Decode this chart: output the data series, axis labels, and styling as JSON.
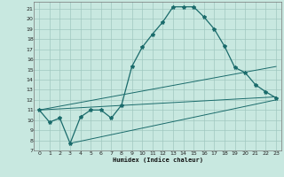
{
  "title": "",
  "xlabel": "Humidex (Indice chaleur)",
  "background_color": "#c8e8e0",
  "grid_color": "#a0c8c0",
  "line_color": "#1a6b6b",
  "xlim": [
    -0.5,
    23.5
  ],
  "ylim": [
    7,
    21.7
  ],
  "yticks": [
    7,
    8,
    9,
    10,
    11,
    12,
    13,
    14,
    15,
    16,
    17,
    18,
    19,
    20,
    21
  ],
  "xticks": [
    0,
    1,
    2,
    3,
    4,
    5,
    6,
    7,
    8,
    9,
    10,
    11,
    12,
    13,
    14,
    15,
    16,
    17,
    18,
    19,
    20,
    21,
    22,
    23
  ],
  "curve1_x": [
    0,
    1,
    2,
    3,
    4,
    5,
    6,
    7,
    8,
    9,
    10,
    11,
    12,
    13,
    14,
    15,
    16,
    17,
    18,
    19,
    20,
    21,
    22,
    23
  ],
  "curve1_y": [
    11,
    9.8,
    10.2,
    7.7,
    10.3,
    11.0,
    11.0,
    10.2,
    11.5,
    15.3,
    17.2,
    18.5,
    19.7,
    21.2,
    21.2,
    21.2,
    20.2,
    19.0,
    17.3,
    15.2,
    14.7,
    13.5,
    12.8,
    12.2
  ],
  "curve2_x": [
    0,
    23
  ],
  "curve2_y": [
    11.0,
    15.3
  ],
  "curve3_x": [
    0,
    23
  ],
  "curve3_y": [
    11.0,
    12.3
  ],
  "curve4_x": [
    3,
    23
  ],
  "curve4_y": [
    7.7,
    12.0
  ]
}
